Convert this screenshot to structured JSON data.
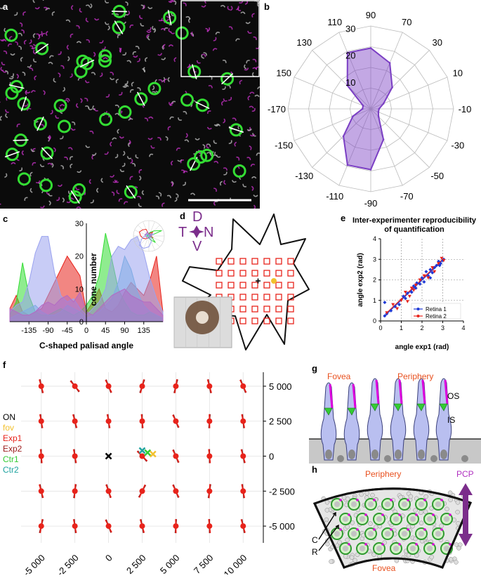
{
  "panel_labels": {
    "a": "a",
    "b": "b",
    "c": "c",
    "d": "d",
    "e": "e",
    "f": "f",
    "g": "g",
    "h": "h"
  },
  "colors": {
    "green": "#33dd33",
    "magenta": "#cc33cc",
    "purple": "#7b3fc4",
    "red": "#e8231b",
    "blue": "#1f3ad6",
    "orange": "#e8501e",
    "yellow": "#f2c12e",
    "cell": "#b9bff0"
  },
  "chart_data": [
    {
      "id": "b",
      "type": "polar-area",
      "title": "",
      "angle_labels": [
        "90",
        "70",
        "30",
        "10",
        "-10",
        "-30",
        "-50",
        "-70",
        "-90",
        "-110",
        "-130",
        "-150",
        "-170",
        "150",
        "130",
        "110"
      ],
      "radial_ticks": [
        "10",
        "20",
        "30"
      ],
      "rmax": 30,
      "values": [
        22,
        18,
        11,
        5,
        3,
        3,
        4,
        12,
        22,
        22,
        14,
        7,
        3,
        3,
        12,
        22
      ]
    },
    {
      "id": "c",
      "type": "area",
      "xlabel": "C-shaped palisad angle",
      "ylabel": "cone number",
      "x_ticks": [
        "-135",
        "-90",
        "-45",
        "0",
        "45",
        "90",
        "135"
      ],
      "y_ticks": [
        "0",
        "10",
        "20",
        "30"
      ],
      "xlim": [
        -180,
        180
      ],
      "ylim": [
        0,
        30
      ],
      "x": [
        -180,
        -165,
        -150,
        -135,
        -120,
        -105,
        -90,
        -75,
        -60,
        -45,
        -30,
        -15,
        0,
        15,
        30,
        45,
        60,
        75,
        90,
        105,
        120,
        135,
        150,
        165,
        180
      ],
      "series": [
        {
          "color": "#e8231b",
          "values": [
            4,
            8,
            3,
            2,
            3,
            4,
            8,
            12,
            16,
            20,
            17,
            14,
            3,
            6,
            10,
            4,
            3,
            5,
            9,
            12,
            10,
            8,
            13,
            20,
            3
          ]
        },
        {
          "color": "#33dd33",
          "values": [
            2,
            6,
            18,
            8,
            3,
            2,
            2,
            3,
            4,
            3,
            2,
            3,
            5,
            8,
            14,
            27,
            19,
            10,
            6,
            3,
            2,
            2,
            3,
            2,
            1
          ]
        },
        {
          "color": "#5fb6d9",
          "values": [
            1,
            2,
            3,
            4,
            5,
            3,
            2,
            2,
            3,
            5,
            4,
            3,
            1,
            2,
            3,
            5,
            7,
            12,
            20,
            16,
            9,
            5,
            3,
            2,
            1
          ]
        },
        {
          "color": "#9aa2ef",
          "values": [
            3,
            5,
            6,
            12,
            21,
            26,
            26,
            15,
            8,
            6,
            7,
            4,
            2,
            4,
            6,
            10,
            20,
            23,
            22,
            25,
            26,
            21,
            13,
            7,
            3
          ]
        },
        {
          "color": "#b36ac4",
          "values": [
            4,
            3,
            2,
            2,
            3,
            5,
            6,
            5,
            7,
            8,
            6,
            9,
            3,
            2,
            4,
            6,
            8,
            9,
            10,
            8,
            7,
            6,
            6,
            4,
            2
          ]
        }
      ]
    },
    {
      "id": "e",
      "type": "scatter",
      "title": "Inter-experimenter reproducibility of quantification",
      "xlabel": "angle exp1 (rad)",
      "ylabel": "angle exp2 (rad)",
      "x_ticks": [
        "0",
        "1",
        "2",
        "3",
        "4"
      ],
      "y_ticks": [
        "0",
        "1",
        "2",
        "3",
        "4"
      ],
      "xlim": [
        0,
        4
      ],
      "ylim": [
        0,
        4
      ],
      "series": [
        {
          "name": "Retina 1",
          "color": "#1f3ad6",
          "points": [
            [
              0.2,
              0.25
            ],
            [
              0.2,
              0.9
            ],
            [
              0.3,
              0.35
            ],
            [
              0.5,
              0.5
            ],
            [
              0.7,
              0.7
            ],
            [
              0.9,
              0.8
            ],
            [
              1.1,
              1.2
            ],
            [
              1.2,
              1.1
            ],
            [
              1.3,
              1.35
            ],
            [
              1.5,
              1.4
            ],
            [
              1.6,
              1.7
            ],
            [
              1.7,
              1.6
            ],
            [
              1.9,
              1.8
            ],
            [
              2.0,
              2.1
            ],
            [
              2.1,
              1.9
            ],
            [
              2.2,
              2.4
            ],
            [
              2.3,
              2.2
            ],
            [
              2.4,
              2.5
            ],
            [
              2.5,
              2.35
            ],
            [
              2.6,
              2.6
            ],
            [
              2.7,
              2.7
            ],
            [
              2.8,
              2.9
            ],
            [
              2.85,
              2.7
            ],
            [
              2.9,
              2.8
            ],
            [
              3.0,
              2.95
            ],
            [
              3.05,
              3.0
            ],
            [
              2.4,
              2.1
            ],
            [
              1.75,
              1.85
            ]
          ]
        },
        {
          "name": "Retina 2",
          "color": "#e8231b",
          "points": [
            [
              0.3,
              0.4
            ],
            [
              0.6,
              0.8
            ],
            [
              0.8,
              0.6
            ],
            [
              1.0,
              1.0
            ],
            [
              1.2,
              1.4
            ],
            [
              1.4,
              1.2
            ],
            [
              1.5,
              1.6
            ],
            [
              1.6,
              1.5
            ],
            [
              1.7,
              1.75
            ],
            [
              1.9,
              2.0
            ],
            [
              2.1,
              2.2
            ],
            [
              2.3,
              2.1
            ],
            [
              2.5,
              2.6
            ],
            [
              2.6,
              2.4
            ],
            [
              2.8,
              2.8
            ],
            [
              2.95,
              3.05
            ],
            [
              3.05,
              2.95
            ],
            [
              1.3,
              0.95
            ]
          ]
        }
      ]
    },
    {
      "id": "f",
      "type": "vector-field",
      "x_ticks": [
        "-5 000",
        "-2 500",
        "0",
        "2 500",
        "5 000",
        "7 500",
        "10 000"
      ],
      "y_ticks": [
        "5 000",
        "2 500",
        "0",
        "-2 500",
        "-5 000"
      ],
      "xlim": [
        -6500,
        11500
      ],
      "ylim": [
        -6200,
        6000
      ],
      "legend": [
        {
          "label": "ON",
          "color": "#000000"
        },
        {
          "label": "fov",
          "color": "#f2c12e"
        },
        {
          "label": "Exp1",
          "color": "#e8231b"
        },
        {
          "label": "Exp2",
          "color": "#9a1b1b"
        },
        {
          "label": "Ctr1",
          "color": "#33cc33"
        },
        {
          "label": "Ctr2",
          "color": "#1fa3a0"
        }
      ],
      "points": [
        [
          -5000,
          5000,
          100
        ],
        [
          -2500,
          5000,
          125
        ],
        [
          0,
          5000,
          110
        ],
        [
          2500,
          5000,
          70
        ],
        [
          5000,
          5000,
          75
        ],
        [
          7500,
          5000,
          100
        ],
        [
          10000,
          5000,
          110
        ],
        [
          -5000,
          2500,
          95
        ],
        [
          -2500,
          2500,
          100
        ],
        [
          0,
          2500,
          95
        ],
        [
          2500,
          2500,
          90
        ],
        [
          5000,
          2500,
          110
        ],
        [
          7500,
          2500,
          85
        ],
        [
          10000,
          2500,
          95
        ],
        [
          -5000,
          0,
          90
        ],
        [
          -2500,
          0,
          95
        ],
        [
          2500,
          0,
          130
        ],
        [
          5000,
          0,
          110
        ],
        [
          7500,
          0,
          90
        ],
        [
          10000,
          0,
          100
        ],
        [
          -5000,
          -2500,
          100
        ],
        [
          -2500,
          -2500,
          80
        ],
        [
          0,
          -2500,
          105
        ],
        [
          2500,
          -2500,
          60
        ],
        [
          5000,
          -2500,
          110
        ],
        [
          7500,
          -2500,
          80
        ],
        [
          10000,
          -2500,
          95
        ],
        [
          -5000,
          -5000,
          75
        ],
        [
          -2500,
          -5000,
          95
        ],
        [
          0,
          -5000,
          110
        ],
        [
          2500,
          -5000,
          100
        ],
        [
          5000,
          -5000,
          85
        ],
        [
          7500,
          -5000,
          90
        ],
        [
          10000,
          -5000,
          100
        ]
      ],
      "markers": [
        {
          "name": "ON",
          "x": 0,
          "y": 0,
          "color": "#000000"
        },
        {
          "name": "Ctr2",
          "x": 2500,
          "y": 400,
          "color": "#1fa3a0"
        },
        {
          "name": "Ctr1",
          "x": 2900,
          "y": 250,
          "color": "#33cc33"
        },
        {
          "name": "fov",
          "x": 3300,
          "y": 150,
          "color": "#f2c12e"
        }
      ]
    }
  ],
  "d": {
    "orientation": {
      "D": "D",
      "T": "T",
      "N": "N",
      "V": "V"
    }
  },
  "g": {
    "fovea": "Fovea",
    "periphery": "Periphery",
    "os": "OS",
    "is": "IS"
  },
  "h": {
    "periphery": "Periphery",
    "fovea": "Fovea",
    "pcp": "PCP",
    "c": "C",
    "r": "R"
  }
}
